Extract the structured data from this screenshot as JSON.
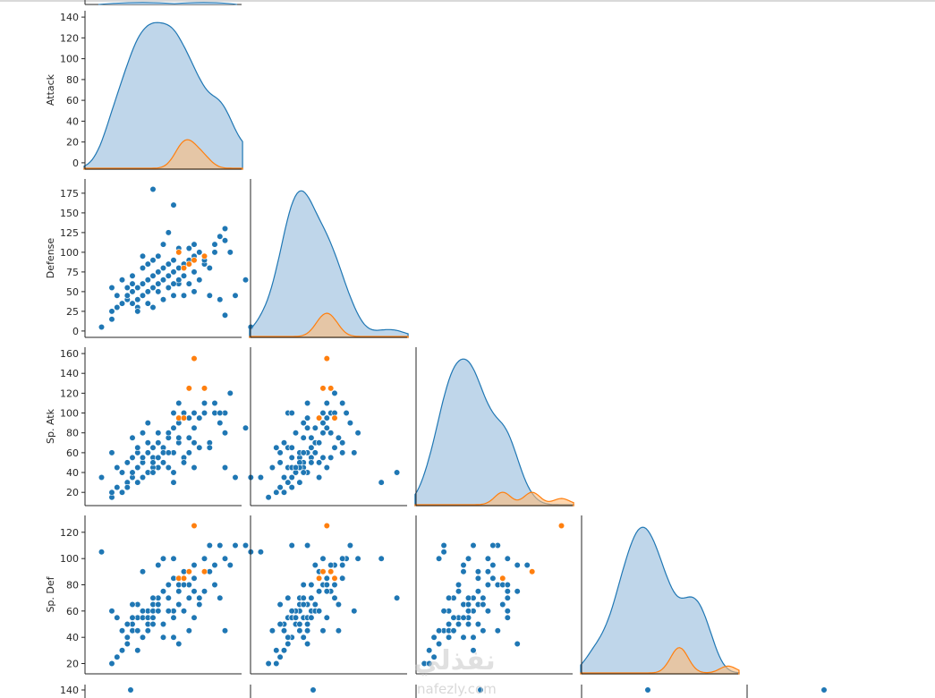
{
  "chart_data": {
    "type": "pairplot",
    "variables": [
      "Attack",
      "Defense",
      "Sp. Atk",
      "Sp. Def"
    ],
    "next_row_variable": "",
    "hue_colors": {
      "blue": "#1f77b4",
      "orange": "#ff7f0e"
    },
    "diagonal": "kde",
    "corner": true,
    "axes": {
      "Attack": {
        "ticks": [
          0,
          20,
          40,
          60,
          80,
          100,
          120,
          140
        ],
        "range": [
          0,
          140
        ]
      },
      "Defense": {
        "ticks": [
          0,
          25,
          50,
          75,
          100,
          125,
          150,
          175
        ],
        "range": [
          0,
          185
        ]
      },
      "Sp. Atk": {
        "ticks": [
          20,
          40,
          60,
          80,
          100,
          120,
          140,
          160
        ],
        "range": [
          13,
          160
        ]
      },
      "Sp. Def": {
        "ticks": [
          20,
          40,
          60,
          80,
          100,
          120
        ],
        "range": [
          17,
          128
        ]
      }
    },
    "next_row_tick": "140",
    "points_blue": [
      [
        10,
        5,
        35,
        105
      ],
      [
        20,
        15,
        15,
        20
      ],
      [
        20,
        25,
        20,
        20
      ],
      [
        25,
        30,
        25,
        25
      ],
      [
        30,
        35,
        20,
        30
      ],
      [
        35,
        40,
        30,
        35
      ],
      [
        35,
        45,
        25,
        40
      ],
      [
        40,
        35,
        35,
        45
      ],
      [
        40,
        50,
        40,
        50
      ],
      [
        45,
        55,
        30,
        45
      ],
      [
        45,
        40,
        45,
        55
      ],
      [
        50,
        60,
        50,
        55
      ],
      [
        50,
        45,
        55,
        40
      ],
      [
        55,
        50,
        40,
        60
      ],
      [
        55,
        65,
        60,
        55
      ],
      [
        60,
        55,
        55,
        65
      ],
      [
        60,
        70,
        65,
        60
      ],
      [
        65,
        60,
        45,
        70
      ],
      [
        65,
        75,
        70,
        65
      ],
      [
        70,
        65,
        60,
        50
      ],
      [
        70,
        80,
        50,
        75
      ],
      [
        75,
        70,
        75,
        70
      ],
      [
        75,
        85,
        80,
        80
      ],
      [
        80,
        75,
        60,
        60
      ],
      [
        80,
        90,
        85,
        85
      ],
      [
        85,
        80,
        70,
        75
      ],
      [
        85,
        60,
        90,
        80
      ],
      [
        90,
        85,
        55,
        90
      ],
      [
        95,
        90,
        95,
        80
      ],
      [
        100,
        95,
        100,
        75
      ],
      [
        100,
        75,
        85,
        95
      ],
      [
        105,
        100,
        65,
        70
      ],
      [
        110,
        85,
        100,
        100
      ],
      [
        120,
        110,
        110,
        95
      ],
      [
        125,
        120,
        90,
        110
      ],
      [
        130,
        115,
        100,
        100
      ],
      [
        20,
        55,
        60,
        60
      ],
      [
        25,
        45,
        45,
        55
      ],
      [
        30,
        65,
        40,
        45
      ],
      [
        35,
        55,
        50,
        50
      ],
      [
        40,
        70,
        55,
        55
      ],
      [
        45,
        30,
        60,
        65
      ],
      [
        50,
        80,
        35,
        60
      ],
      [
        55,
        35,
        70,
        50
      ],
      [
        60,
        90,
        45,
        55
      ],
      [
        65,
        50,
        80,
        60
      ],
      [
        70,
        40,
        65,
        40
      ],
      [
        75,
        55,
        45,
        70
      ],
      [
        80,
        45,
        100,
        55
      ],
      [
        85,
        105,
        75,
        65
      ],
      [
        90,
        70,
        50,
        80
      ],
      [
        95,
        60,
        60,
        70
      ],
      [
        100,
        110,
        70,
        85
      ],
      [
        105,
        65,
        95,
        65
      ],
      [
        110,
        90,
        110,
        75
      ],
      [
        115,
        80,
        70,
        90
      ],
      [
        120,
        100,
        100,
        80
      ],
      [
        130,
        130,
        80,
        100
      ],
      [
        135,
        100,
        120,
        95
      ],
      [
        55,
        85,
        90,
        45
      ],
      [
        60,
        30,
        50,
        50
      ],
      [
        45,
        25,
        65,
        30
      ],
      [
        40,
        60,
        75,
        65
      ],
      [
        50,
        95,
        80,
        90
      ],
      [
        65,
        95,
        55,
        95
      ],
      [
        70,
        110,
        60,
        100
      ],
      [
        80,
        60,
        40,
        40
      ],
      [
        75,
        125,
        60,
        60
      ],
      [
        85,
        65,
        110,
        35
      ],
      [
        95,
        105,
        75,
        45
      ],
      [
        60,
        180,
        40,
        70
      ],
      [
        80,
        160,
        30,
        100
      ],
      [
        115,
        45,
        65,
        110
      ],
      [
        150,
        65,
        85,
        110
      ],
      [
        130,
        20,
        45,
        45
      ],
      [
        140,
        45,
        35,
        110
      ],
      [
        155,
        5,
        35,
        105
      ],
      [
        125,
        40,
        100,
        70
      ],
      [
        100,
        50,
        45,
        55
      ],
      [
        90,
        45,
        100,
        60
      ]
    ],
    "points_orange": [
      [
        100,
        90,
        155,
        125
      ],
      [
        85,
        100,
        95,
        85
      ],
      [
        95,
        85,
        125,
        90
      ],
      [
        110,
        95,
        125,
        90
      ],
      [
        90,
        80,
        95,
        85
      ]
    ]
  }
}
